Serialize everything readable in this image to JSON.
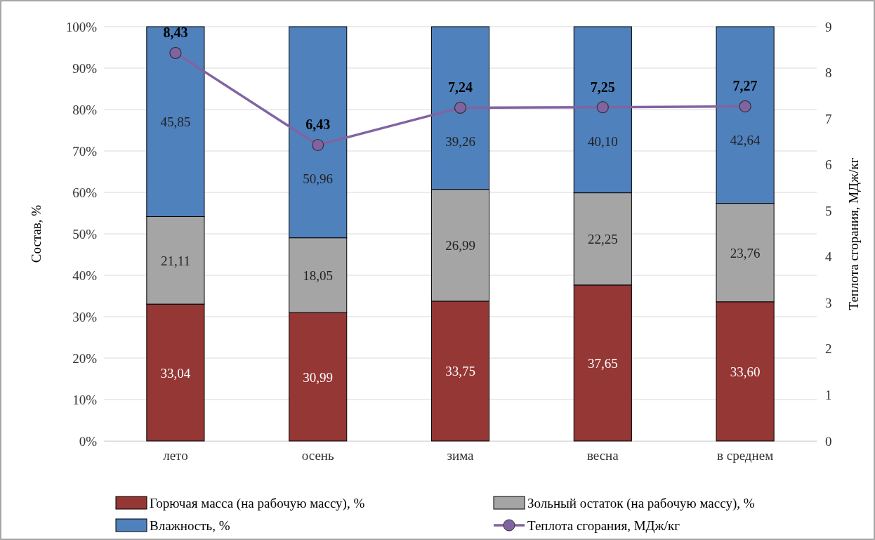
{
  "chart_data": {
    "type": "bar",
    "stacked": true,
    "categories": [
      "лето",
      "осень",
      "зима",
      "весна",
      "в среднем"
    ],
    "ylabel": "Состав, %",
    "y2label": "Теплота сгорания, МДж/кг",
    "ylim": [
      0,
      100
    ],
    "yticks": [
      {
        "value": 0,
        "label": "0%"
      },
      {
        "value": 10,
        "label": "10%"
      },
      {
        "value": 20,
        "label": "20%"
      },
      {
        "value": 30,
        "label": "30%"
      },
      {
        "value": 40,
        "label": "40%"
      },
      {
        "value": 50,
        "label": "50%"
      },
      {
        "value": 60,
        "label": "60%"
      },
      {
        "value": 70,
        "label": "70%"
      },
      {
        "value": 80,
        "label": "80%"
      },
      {
        "value": 90,
        "label": "90%"
      },
      {
        "value": 100,
        "label": "100%"
      }
    ],
    "y2lim": [
      0,
      9
    ],
    "y2ticks": [
      0,
      1,
      2,
      3,
      4,
      5,
      6,
      7,
      8,
      9
    ],
    "grid": "y",
    "legend": "bottom",
    "series": [
      {
        "name": "Горючая масса (на рабочую массу), %",
        "color": "#953735",
        "values": [
          33.04,
          30.99,
          33.75,
          37.65,
          33.6
        ],
        "value_labels": [
          "33,04",
          "30,99",
          "33,75",
          "37,65",
          "33,60"
        ]
      },
      {
        "name": "Зольный остаток (на рабочую массу), %",
        "color": "#a5a5a5",
        "values": [
          21.11,
          18.05,
          26.99,
          22.25,
          23.76
        ],
        "value_labels": [
          "21,11",
          "18,05",
          "26,99",
          "22,25",
          "23,76"
        ]
      },
      {
        "name": "Влажность, %",
        "color": "#4f81bd",
        "values": [
          45.85,
          50.96,
          39.26,
          40.1,
          42.64
        ],
        "value_labels": [
          "45,85",
          "50,96",
          "39,26",
          "40,10",
          "42,64"
        ]
      },
      {
        "name": "Теплота сгорания, МДж/кг",
        "type": "line",
        "axis": "y2",
        "color": "#8064a2",
        "marker": "circle",
        "line_style": "solid",
        "values": [
          8.43,
          6.43,
          7.24,
          7.25,
          7.27
        ],
        "value_labels": [
          "8,43",
          "6,43",
          "7,24",
          "7,25",
          "7,27"
        ]
      }
    ]
  }
}
